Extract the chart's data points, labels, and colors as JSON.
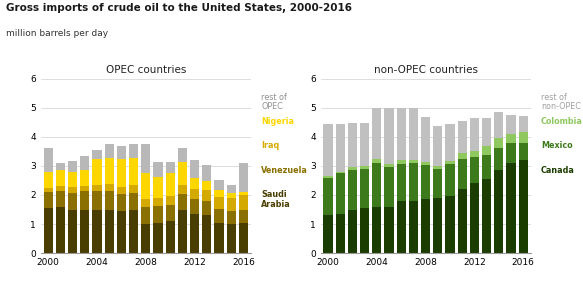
{
  "title": "Gross imports of crude oil to the United States, 2000-2016",
  "subtitle": "million barrels per day",
  "years": [
    2000,
    2001,
    2002,
    2003,
    2004,
    2005,
    2006,
    2007,
    2008,
    2009,
    2010,
    2011,
    2012,
    2013,
    2014,
    2015,
    2016
  ],
  "opec": {
    "saudi_arabia": [
      1.55,
      1.6,
      1.5,
      1.5,
      1.5,
      1.5,
      1.45,
      1.48,
      1.0,
      1.05,
      1.1,
      1.5,
      1.35,
      1.3,
      1.05,
      1.0,
      1.05
    ],
    "venezuela": [
      0.55,
      0.55,
      0.58,
      0.62,
      0.65,
      0.65,
      0.6,
      0.6,
      0.6,
      0.58,
      0.55,
      0.55,
      0.5,
      0.5,
      0.48,
      0.45,
      0.45
    ],
    "iraq": [
      0.15,
      0.15,
      0.2,
      0.2,
      0.2,
      0.22,
      0.22,
      0.25,
      0.25,
      0.25,
      0.3,
      0.3,
      0.35,
      0.38,
      0.4,
      0.45,
      0.5
    ],
    "nigeria": [
      0.55,
      0.55,
      0.5,
      0.55,
      0.9,
      0.9,
      0.95,
      0.95,
      0.9,
      0.75,
      0.8,
      0.8,
      0.4,
      0.3,
      0.25,
      0.18,
      0.1
    ],
    "rest_of_opec": [
      0.8,
      0.25,
      0.38,
      0.48,
      0.3,
      0.48,
      0.48,
      0.48,
      1.0,
      0.5,
      0.4,
      0.45,
      0.6,
      0.55,
      0.32,
      0.27,
      1.0
    ]
  },
  "non_opec": {
    "canada": [
      1.3,
      1.35,
      1.5,
      1.55,
      1.6,
      1.6,
      1.78,
      1.8,
      1.85,
      1.9,
      1.95,
      2.2,
      2.4,
      2.55,
      2.85,
      3.1,
      3.2
    ],
    "mexico": [
      1.3,
      1.4,
      1.35,
      1.35,
      1.5,
      1.35,
      1.3,
      1.3,
      1.18,
      1.0,
      1.1,
      1.05,
      0.9,
      0.82,
      0.75,
      0.68,
      0.6
    ],
    "colombia": [
      0.05,
      0.05,
      0.12,
      0.1,
      0.12,
      0.1,
      0.12,
      0.1,
      0.1,
      0.1,
      0.12,
      0.18,
      0.22,
      0.32,
      0.35,
      0.32,
      0.38
    ],
    "rest_of_nonopec": [
      1.8,
      1.65,
      1.52,
      1.48,
      1.78,
      1.95,
      1.78,
      1.78,
      1.55,
      1.38,
      1.28,
      1.12,
      1.12,
      0.95,
      0.9,
      0.65,
      0.55
    ]
  },
  "opec_colors": {
    "saudi_arabia": "#4a3d00",
    "venezuela": "#8a7000",
    "iraq": "#d4aa00",
    "nigeria": "#ffd700",
    "rest_of_opec": "#b8b8b8"
  },
  "non_opec_colors": {
    "canada": "#1c3d00",
    "mexico": "#3d7a1c",
    "colombia": "#90c860",
    "rest_of_nonopec": "#c0c0c0"
  },
  "ylim": [
    0,
    6
  ],
  "yticks": [
    0,
    1,
    2,
    3,
    4,
    5,
    6
  ],
  "background_color": "#ffffff",
  "grid_color": "#d0d0d0",
  "opec_legend": [
    {
      "label": "rest of\nOPEC",
      "color": "#909090"
    },
    {
      "label": "Nigeria",
      "color": "#ffd700"
    },
    {
      "label": "Iraq",
      "color": "#d4aa00"
    },
    {
      "label": "Venezuela",
      "color": "#8a7000"
    },
    {
      "label": "Saudi\nArabia",
      "color": "#4a3d00"
    }
  ],
  "nonopec_legend": [
    {
      "label": "rest of\nnon-OPEC",
      "color": "#a0a0a0"
    },
    {
      "label": "Colombia",
      "color": "#90c860"
    },
    {
      "label": "Mexico",
      "color": "#3d7a1c"
    },
    {
      "label": "Canada",
      "color": "#1c3d00"
    }
  ]
}
